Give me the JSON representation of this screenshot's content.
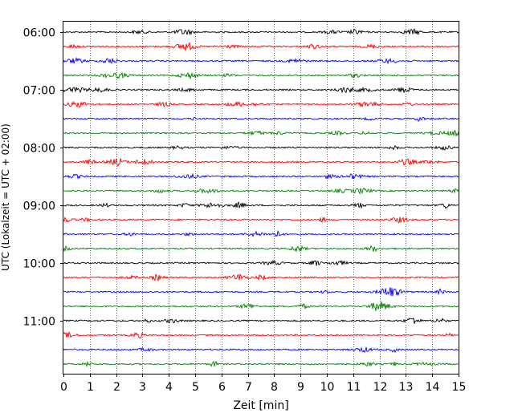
{
  "chart_data": {
    "type": "line",
    "title": "",
    "xlabel": "Zeit  [min]",
    "ylabel": "UTC (Lokalzeit = UTC + 02:00)",
    "xlim": [
      0,
      15
    ],
    "x_ticks": [
      "0",
      "1",
      "2",
      "3",
      "4",
      "5",
      "6",
      "7",
      "8",
      "9",
      "10",
      "11",
      "12",
      "13",
      "14",
      "15"
    ],
    "y_ticks": [
      "06:00",
      "07:00",
      "08:00",
      "09:00",
      "10:00",
      "11:00"
    ],
    "row_interval_minutes": 15,
    "row_count": 24,
    "first_row": "06:00",
    "last_row": "11:45",
    "color_cycle": [
      "#000000",
      "#ff0000",
      "#0000ff",
      "#008000"
    ],
    "grid": "vertical dotted lines at each minute",
    "legend": "none"
  }
}
